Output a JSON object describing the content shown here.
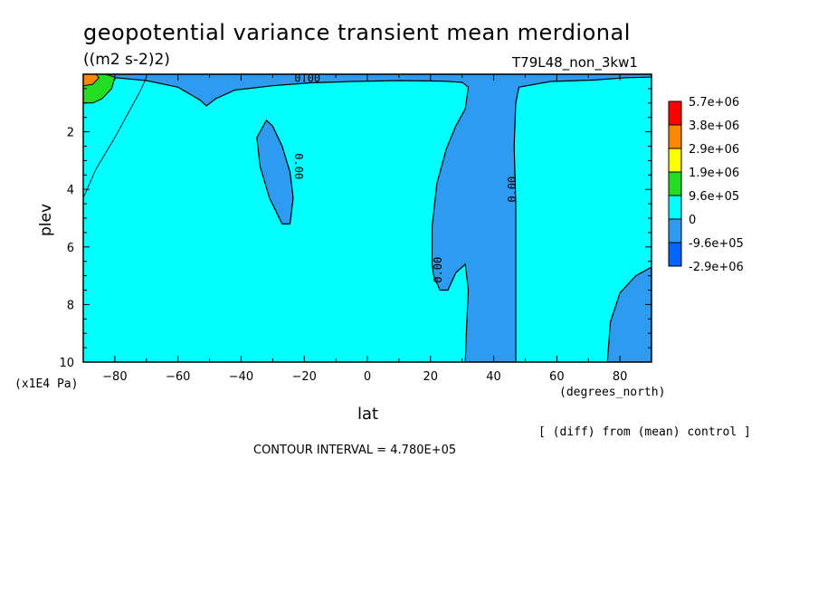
{
  "header": {
    "title": "geopotential variance transient mean merdional",
    "units": "((m2 s-2)2)",
    "run_label": "T79L48_non_3kw1"
  },
  "footer": {
    "xlabel": "lat",
    "x_units": "(degrees_north)",
    "y_units": "(x1E4 Pa)",
    "diff_note": "[ (diff) from (mean) control ]",
    "contour_interval": "CONTOUR INTERVAL = 4.780E+05"
  },
  "chart_data": {
    "type": "contour",
    "title": "geopotential variance transient mean merdional",
    "xlabel": "lat",
    "ylabel": "plev",
    "xlim": [
      -90,
      90
    ],
    "ylim": [
      0,
      10
    ],
    "y_inverted": true,
    "x_ticks": [
      -80,
      -60,
      -40,
      -20,
      0,
      20,
      40,
      60,
      80
    ],
    "y_ticks": [
      2,
      4,
      6,
      8,
      10
    ],
    "contour_labels": [
      {
        "text": "0.00",
        "lat": -19,
        "plev": 0.15,
        "rotation": 0
      },
      {
        "text": "0.00",
        "lat": -22,
        "plev": 3.2,
        "rotation": 90
      },
      {
        "text": "0.00",
        "lat": 46,
        "plev": 4.0,
        "rotation": -90
      },
      {
        "text": "0.00",
        "lat": 22.5,
        "plev": 6.8,
        "rotation": -90
      }
    ],
    "negative_regions": [
      {
        "name": "upper-band",
        "points": [
          [
            -84,
            0.08
          ],
          [
            -70,
            0.22
          ],
          [
            -60,
            0.45
          ],
          [
            -53,
            0.9
          ],
          [
            -51,
            1.1
          ],
          [
            -48,
            0.85
          ],
          [
            -42,
            0.55
          ],
          [
            -30,
            0.4
          ],
          [
            -18,
            0.3
          ],
          [
            -5,
            0.25
          ],
          [
            10,
            0.22
          ],
          [
            24,
            0.24
          ],
          [
            30,
            0.28
          ],
          [
            32,
            0.45
          ],
          [
            31,
            1.2
          ],
          [
            28,
            1.8
          ],
          [
            25,
            2.6
          ],
          [
            22,
            3.8
          ],
          [
            20.5,
            5.3
          ],
          [
            20.5,
            6.6
          ],
          [
            21,
            7.0
          ],
          [
            23,
            7.5
          ],
          [
            25.5,
            7.5
          ],
          [
            28,
            6.9
          ],
          [
            31,
            6.6
          ],
          [
            32,
            7.5
          ],
          [
            31.5,
            8.6
          ],
          [
            31,
            10
          ],
          [
            47,
            10
          ],
          [
            47,
            4.5
          ],
          [
            46.5,
            2.5
          ],
          [
            47,
            1.0
          ],
          [
            48,
            0.45
          ],
          [
            58,
            0.25
          ],
          [
            72,
            0.2
          ],
          [
            82,
            0.12
          ],
          [
            90,
            0.1
          ],
          [
            90,
            0
          ],
          [
            -90,
            0
          ],
          [
            -90,
            0.08
          ]
        ]
      },
      {
        "name": "mid-south-blob",
        "points": [
          [
            -32,
            1.6
          ],
          [
            -35,
            2.2
          ],
          [
            -34,
            3.2
          ],
          [
            -31,
            4.3
          ],
          [
            -27,
            5.2
          ],
          [
            -24.5,
            5.2
          ],
          [
            -23.5,
            4.3
          ],
          [
            -24.5,
            3.4
          ],
          [
            -27,
            2.5
          ],
          [
            -30,
            1.8
          ]
        ]
      },
      {
        "name": "lower-north-corner",
        "points": [
          [
            76,
            10
          ],
          [
            77,
            8.6
          ],
          [
            80,
            7.6
          ],
          [
            85,
            7.0
          ],
          [
            90,
            6.7
          ],
          [
            90,
            10
          ]
        ]
      }
    ],
    "positive_regions": [
      {
        "name": "south-pole-top",
        "level": "9.6e+05",
        "points": [
          [
            -90,
            0
          ],
          [
            -83,
            0
          ],
          [
            -80,
            0.1
          ],
          [
            -81,
            0.5
          ],
          [
            -84,
            0.85
          ],
          [
            -87,
            1.0
          ],
          [
            -90,
            1.0
          ]
        ]
      },
      {
        "name": "south-pole-core",
        "level": "2.9e+06",
        "points": [
          [
            -90,
            0
          ],
          [
            -86,
            0
          ],
          [
            -85,
            0.12
          ],
          [
            -87,
            0.35
          ],
          [
            -90,
            0.4
          ]
        ]
      }
    ],
    "contour_lines": [
      {
        "name": "weak-positive-line",
        "points": [
          [
            -90,
            4.3
          ],
          [
            -86,
            3.3
          ],
          [
            -80,
            2.2
          ],
          [
            -76,
            1.4
          ],
          [
            -72,
            0.6
          ],
          [
            -70,
            0.1
          ]
        ]
      }
    ],
    "legend": {
      "position": "right",
      "levels": [
        "5.7e+06",
        "3.8e+06",
        "2.9e+06",
        "1.9e+06",
        "9.6e+05",
        "0",
        "-9.6e+05",
        "-2.9e+06"
      ],
      "colors": [
        "#ff0000",
        "#ff8800",
        "#ffff00",
        "#22dd22",
        "#00ffff",
        "#00ffff",
        "#2f9bf0",
        "#0066ff"
      ]
    },
    "fill_colors": {
      "background": "#00ffff",
      "negative": "#2f9bf0",
      "positive_low": "#22dd22",
      "positive_mid": "#ff8800"
    }
  }
}
